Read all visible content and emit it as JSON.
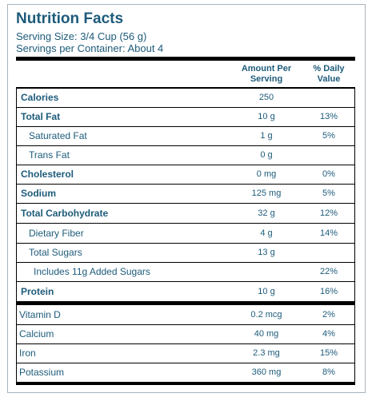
{
  "label": {
    "title": "Nutrition Facts",
    "serving_size": "Serving Size: 3/4 Cup (56 g)",
    "servings_per_container": "Servings per Container: About 4"
  },
  "table": {
    "headers": {
      "amount_line1": "Amount Per",
      "amount_line2": "Serving",
      "dv_line1": "% Daily",
      "dv_line2": "Value"
    },
    "nutrients": [
      {
        "name": "Calories",
        "amount": "250",
        "dv": ""
      },
      {
        "name": "Total Fat",
        "amount": "10 g",
        "dv": "13%"
      },
      {
        "name": "Saturated Fat",
        "amount": "1 g",
        "dv": "5%"
      },
      {
        "name": "Trans Fat",
        "amount": "0 g",
        "dv": ""
      },
      {
        "name": "Cholesterol",
        "amount": "0 mg",
        "dv": "0%"
      },
      {
        "name": "Sodium",
        "amount": "125 mg",
        "dv": "5%"
      },
      {
        "name": "Total Carbohydrate",
        "amount": "32 g",
        "dv": "12%"
      },
      {
        "name": "Dietary Fiber",
        "amount": "4 g",
        "dv": "14%"
      },
      {
        "name": "Total Sugars",
        "amount": "13 g",
        "dv": ""
      },
      {
        "name": "Includes 11g Added Sugars",
        "amount": "",
        "dv": "22%"
      },
      {
        "name": "Protein",
        "amount": "10 g",
        "dv": "16%"
      }
    ],
    "vitamins": [
      {
        "name": "Vitamin D",
        "amount": "0.2 mcg",
        "dv": "2%"
      },
      {
        "name": "Calcium",
        "amount": "40 mg",
        "dv": "4%"
      },
      {
        "name": "Iron",
        "amount": "2.3 mg",
        "dv": "15%"
      },
      {
        "name": "Potassium",
        "amount": "360 mg",
        "dv": "8%"
      }
    ]
  },
  "colors": {
    "text": "#1d5b7a",
    "rules": "#000000",
    "panel_border": "#a8b4bc"
  }
}
